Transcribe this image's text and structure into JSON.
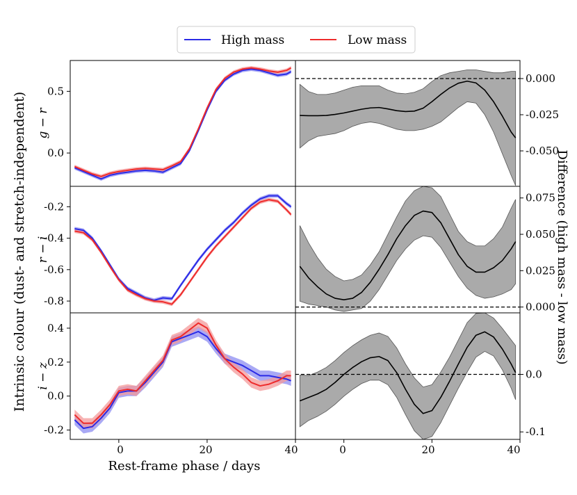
{
  "legend": {
    "entries": [
      {
        "label": "High mass",
        "color": "#2a2ae6"
      },
      {
        "label": "Low mass",
        "color": "#ee2b2b"
      }
    ]
  },
  "labels": {
    "shared_ylabel": "Intrinsic colour (dust- and stretch-independent)",
    "xlabel": "Rest-frame phase / days",
    "right_ylabel": "Difference (high mass - low mass)"
  },
  "colors": {
    "high": "#2a2ae6",
    "high_band": "#8c8cf2",
    "low": "#ee2b2b",
    "low_band": "#f49a9a",
    "diff_band": "#aaaaaa"
  },
  "chart_data": [
    {
      "id": "g-r",
      "type": "line",
      "ylabel": "g − r",
      "xlim": [
        -11,
        40
      ],
      "ylim": [
        -0.27,
        0.75
      ],
      "yticks": [
        0.0,
        0.5
      ],
      "ytick_labels": [
        "0.0",
        "0.5"
      ],
      "x": [
        -10,
        -8,
        -6,
        -4,
        -2,
        0,
        2,
        4,
        6,
        8,
        10,
        12,
        14,
        16,
        18,
        20,
        22,
        24,
        26,
        28,
        30,
        32,
        34,
        36,
        38,
        39
      ],
      "series": [
        {
          "name": "High mass",
          "values": [
            -0.12,
            -0.15,
            -0.18,
            -0.21,
            -0.18,
            -0.165,
            -0.155,
            -0.145,
            -0.14,
            -0.145,
            -0.155,
            -0.12,
            -0.085,
            0.02,
            0.18,
            0.35,
            0.5,
            0.59,
            0.64,
            0.67,
            0.68,
            0.67,
            0.65,
            0.63,
            0.64,
            0.66
          ],
          "band": 0.015
        },
        {
          "name": "Low mass",
          "values": [
            -0.11,
            -0.14,
            -0.17,
            -0.19,
            -0.165,
            -0.15,
            -0.14,
            -0.13,
            -0.125,
            -0.13,
            -0.135,
            -0.105,
            -0.07,
            0.035,
            0.195,
            0.365,
            0.515,
            0.605,
            0.655,
            0.68,
            0.69,
            0.68,
            0.665,
            0.655,
            0.67,
            0.69
          ],
          "band": 0.015
        }
      ]
    },
    {
      "id": "r-i",
      "type": "line",
      "ylabel": "r − i",
      "xlim": [
        -11,
        40
      ],
      "ylim": [
        -0.875,
        -0.07
      ],
      "yticks": [
        -0.8,
        -0.6,
        -0.4,
        -0.2
      ],
      "ytick_labels": [
        "-0.8",
        "-0.6",
        "-0.4",
        "-0.2"
      ],
      "x": [
        -10,
        -8,
        -6,
        -4,
        -2,
        0,
        2,
        4,
        6,
        8,
        10,
        12,
        14,
        16,
        18,
        20,
        22,
        24,
        26,
        28,
        30,
        32,
        34,
        36,
        38,
        39
      ],
      "series": [
        {
          "name": "High mass",
          "values": [
            -0.34,
            -0.35,
            -0.4,
            -0.48,
            -0.57,
            -0.66,
            -0.72,
            -0.75,
            -0.78,
            -0.795,
            -0.78,
            -0.785,
            -0.7,
            -0.62,
            -0.54,
            -0.47,
            -0.41,
            -0.35,
            -0.3,
            -0.24,
            -0.19,
            -0.15,
            -0.13,
            -0.13,
            -0.18,
            -0.2
          ],
          "band": 0.012
        },
        {
          "name": "Low mass",
          "values": [
            -0.355,
            -0.365,
            -0.41,
            -0.49,
            -0.58,
            -0.665,
            -0.73,
            -0.76,
            -0.785,
            -0.8,
            -0.805,
            -0.82,
            -0.76,
            -0.68,
            -0.6,
            -0.52,
            -0.45,
            -0.39,
            -0.33,
            -0.27,
            -0.21,
            -0.17,
            -0.155,
            -0.165,
            -0.22,
            -0.25
          ],
          "band": 0.012
        }
      ]
    },
    {
      "id": "i-z",
      "type": "line",
      "ylabel": "i − z",
      "xlim": [
        -11,
        40
      ],
      "ylim": [
        -0.255,
        0.49
      ],
      "yticks": [
        -0.2,
        0.0,
        0.2,
        0.4
      ],
      "ytick_labels": [
        "-0.2",
        "0.0",
        "0.2",
        "0.4"
      ],
      "x": [
        -10,
        -8,
        -6,
        -4,
        -2,
        0,
        2,
        4,
        6,
        8,
        10,
        12,
        14,
        16,
        18,
        20,
        22,
        24,
        26,
        28,
        30,
        32,
        34,
        36,
        38,
        39
      ],
      "series": [
        {
          "name": "High mass",
          "values": [
            -0.14,
            -0.19,
            -0.18,
            -0.13,
            -0.07,
            0.02,
            0.03,
            0.03,
            0.08,
            0.14,
            0.2,
            0.32,
            0.34,
            0.36,
            0.38,
            0.35,
            0.28,
            0.22,
            0.2,
            0.18,
            0.15,
            0.12,
            0.12,
            0.11,
            0.1,
            0.09
          ],
          "band": 0.03
        },
        {
          "name": "Low mass",
          "values": [
            -0.11,
            -0.16,
            -0.16,
            -0.11,
            -0.05,
            0.03,
            0.04,
            0.03,
            0.09,
            0.15,
            0.21,
            0.33,
            0.35,
            0.39,
            0.43,
            0.4,
            0.3,
            0.22,
            0.17,
            0.13,
            0.08,
            0.06,
            0.07,
            0.09,
            0.12,
            0.12
          ],
          "band": 0.03
        }
      ]
    },
    {
      "id": "diff-g-r",
      "type": "area",
      "xlim": [
        -11,
        40
      ],
      "ylim": [
        -0.0745,
        0.0125
      ],
      "yticks": [
        0.0,
        -0.025,
        -0.05
      ],
      "ytick_labels": [
        "0.000",
        "-0.025",
        "-0.050"
      ],
      "reference_line": 0.0,
      "x": [
        -10,
        -8,
        -6,
        -4,
        -2,
        0,
        2,
        4,
        6,
        8,
        10,
        12,
        14,
        16,
        18,
        20,
        22,
        24,
        26,
        28,
        30,
        32,
        34,
        36,
        38,
        39
      ],
      "series": [
        {
          "name": "Difference",
          "values": [
            -0.0255,
            -0.0257,
            -0.0257,
            -0.0255,
            -0.0248,
            -0.0238,
            -0.0225,
            -0.0212,
            -0.0203,
            -0.02,
            -0.021,
            -0.0222,
            -0.0228,
            -0.0225,
            -0.0205,
            -0.016,
            -0.011,
            -0.0065,
            -0.0032,
            -0.0018,
            -0.003,
            -0.008,
            -0.016,
            -0.026,
            -0.037,
            -0.041
          ],
          "upper": [
            -0.004,
            -0.009,
            -0.011,
            -0.011,
            -0.01,
            -0.008,
            -0.006,
            -0.005,
            -0.005,
            -0.005,
            -0.008,
            -0.01,
            -0.0105,
            -0.0095,
            -0.007,
            -0.002,
            0.002,
            0.004,
            0.005,
            0.006,
            0.006,
            0.005,
            0.004,
            0.004,
            0.005,
            0.005
          ],
          "lower": [
            -0.048,
            -0.043,
            -0.04,
            -0.039,
            -0.038,
            -0.036,
            -0.033,
            -0.031,
            -0.03,
            -0.031,
            -0.033,
            -0.035,
            -0.036,
            -0.036,
            -0.035,
            -0.033,
            -0.03,
            -0.025,
            -0.02,
            -0.016,
            -0.017,
            -0.025,
            -0.037,
            -0.052,
            -0.067,
            -0.074
          ]
        }
      ]
    },
    {
      "id": "diff-r-i",
      "type": "area",
      "xlim": [
        -11,
        40
      ],
      "ylim": [
        -0.004,
        0.083
      ],
      "yticks": [
        0.0,
        0.025,
        0.05,
        0.075
      ],
      "ytick_labels": [
        "0.000",
        "0.025",
        "0.050",
        "0.075"
      ],
      "reference_line": 0.0,
      "x": [
        -10,
        -8,
        -6,
        -4,
        -2,
        0,
        2,
        4,
        6,
        8,
        10,
        12,
        14,
        16,
        18,
        20,
        22,
        24,
        26,
        28,
        30,
        32,
        34,
        36,
        38,
        39
      ],
      "series": [
        {
          "name": "Difference",
          "values": [
            0.028,
            0.02,
            0.014,
            0.009,
            0.006,
            0.005,
            0.006,
            0.01,
            0.017,
            0.026,
            0.036,
            0.047,
            0.056,
            0.063,
            0.066,
            0.065,
            0.058,
            0.047,
            0.036,
            0.028,
            0.024,
            0.024,
            0.027,
            0.032,
            0.04,
            0.045
          ],
          "upper": [
            0.056,
            0.044,
            0.034,
            0.026,
            0.021,
            0.018,
            0.019,
            0.022,
            0.029,
            0.038,
            0.05,
            0.062,
            0.073,
            0.08,
            0.083,
            0.082,
            0.076,
            0.064,
            0.052,
            0.045,
            0.042,
            0.042,
            0.047,
            0.055,
            0.068,
            0.074
          ],
          "lower": [
            0.004,
            0.002,
            0.001,
            0.0,
            -0.002,
            -0.003,
            -0.002,
            -0.001,
            0.004,
            0.012,
            0.022,
            0.032,
            0.04,
            0.046,
            0.049,
            0.048,
            0.041,
            0.031,
            0.021,
            0.013,
            0.008,
            0.006,
            0.007,
            0.009,
            0.012,
            0.016
          ]
        }
      ]
    },
    {
      "id": "diff-i-z",
      "type": "area",
      "xlim": [
        -11,
        40
      ],
      "ylim": [
        -0.113,
        0.107
      ],
      "yticks": [
        0.0,
        -0.1
      ],
      "ytick_labels": [
        "0.0",
        "-0.1"
      ],
      "reference_line": 0.0,
      "x": [
        -10,
        -8,
        -6,
        -4,
        -2,
        0,
        2,
        4,
        6,
        8,
        10,
        12,
        14,
        16,
        18,
        20,
        22,
        24,
        26,
        28,
        30,
        32,
        34,
        36,
        38,
        39
      ],
      "series": [
        {
          "name": "Difference",
          "values": [
            -0.046,
            -0.04,
            -0.034,
            -0.026,
            -0.014,
            0.0,
            0.012,
            0.022,
            0.029,
            0.031,
            0.024,
            0.003,
            -0.026,
            -0.052,
            -0.068,
            -0.063,
            -0.04,
            -0.012,
            0.018,
            0.047,
            0.068,
            0.074,
            0.065,
            0.044,
            0.018,
            0.003
          ],
          "upper": [
            -0.001,
            -0.002,
            0.004,
            0.012,
            0.024,
            0.038,
            0.05,
            0.06,
            0.068,
            0.072,
            0.066,
            0.046,
            0.018,
            -0.006,
            -0.022,
            -0.018,
            0.004,
            0.03,
            0.06,
            0.09,
            0.106,
            0.107,
            0.098,
            0.08,
            0.06,
            0.05
          ],
          "lower": [
            -0.091,
            -0.08,
            -0.073,
            -0.064,
            -0.052,
            -0.038,
            -0.026,
            -0.016,
            -0.01,
            -0.01,
            -0.018,
            -0.04,
            -0.07,
            -0.098,
            -0.113,
            -0.108,
            -0.084,
            -0.054,
            -0.024,
            0.004,
            0.03,
            0.04,
            0.032,
            0.008,
            -0.024,
            -0.044
          ]
        }
      ]
    }
  ],
  "x_axis": {
    "ticks": [
      0,
      20,
      40
    ],
    "left_tick_labels": [
      "0",
      "20",
      "40"
    ],
    "right_tick_labels": [
      "0",
      "20",
      "40"
    ]
  }
}
